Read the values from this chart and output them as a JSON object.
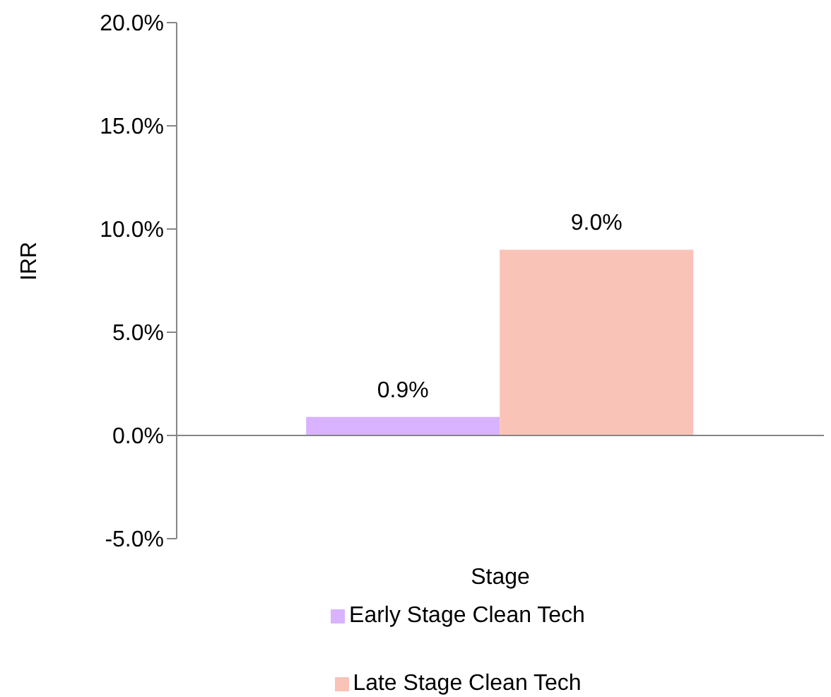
{
  "chart_data": {
    "type": "bar",
    "xlabel": "Stage",
    "ylabel": "IRR",
    "categories": [
      null
    ],
    "series": [
      {
        "name": "Early Stage Clean Tech",
        "color": "#d9b3ff",
        "values": [
          0.9
        ],
        "value_labels": [
          "0.9%"
        ]
      },
      {
        "name": "Late Stage Clean Tech",
        "color": "#f9c3b8",
        "values": [
          9.0
        ],
        "value_labels": [
          "9.0%"
        ]
      }
    ],
    "ylim": [
      -5,
      20
    ],
    "yticks": [
      {
        "value": -5,
        "label": "-5.0%"
      },
      {
        "value": 0,
        "label": "0.0%"
      },
      {
        "value": 5,
        "label": "5.0%"
      },
      {
        "value": 10,
        "label": "10.0%"
      },
      {
        "value": 15,
        "label": "15.0%"
      },
      {
        "value": 20,
        "label": "20.0%"
      }
    ],
    "legend": "bottom"
  }
}
